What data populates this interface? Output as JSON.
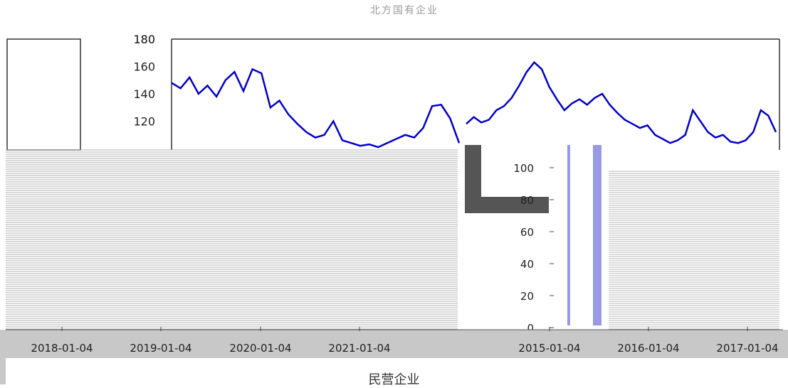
{
  "header": {
    "title": "北方国有企业"
  },
  "footer": {
    "xlabel": "民营企业"
  },
  "chart_data": [
    {
      "type": "line",
      "title": "北方国有企业",
      "xlabel": "",
      "ylabel": "",
      "color": "#0000cc",
      "x_ticks": [
        "2018-01-04",
        "2019-01-04",
        "2020-01-04",
        "2021-01-04"
      ],
      "y_ticks": [
        120,
        140,
        160,
        180
      ],
      "ylim": [
        100,
        180
      ],
      "grid": false,
      "series": [
        {
          "values": [
            148,
            144,
            152,
            140,
            146,
            138,
            150,
            156,
            142,
            158,
            155,
            130,
            135,
            125,
            118,
            112,
            108,
            110,
            120,
            106,
            104,
            102,
            103,
            101,
            104,
            107,
            110,
            108,
            115,
            131,
            132,
            122,
            104
          ]
        }
      ]
    },
    {
      "type": "line",
      "title": "",
      "xlabel": "民营企业",
      "ylabel": "",
      "color": "#0000cc",
      "x_ticks": [
        "2015-01-04",
        "2016-01-04",
        "2017-01-04"
      ],
      "y_ticks": [
        0,
        20,
        40,
        60,
        80,
        100
      ],
      "ylim": [
        0,
        180
      ],
      "grid": false,
      "series": [
        {
          "values": [
            118,
            123,
            119,
            121,
            128,
            131,
            137,
            146,
            156,
            163,
            158,
            145,
            136,
            128,
            133,
            136,
            132,
            137,
            140,
            132,
            126,
            121,
            118,
            115,
            117,
            110,
            107,
            104,
            106,
            110,
            128,
            120,
            112,
            108,
            110,
            105,
            104,
            106,
            112,
            128,
            124,
            112
          ]
        }
      ]
    }
  ]
}
